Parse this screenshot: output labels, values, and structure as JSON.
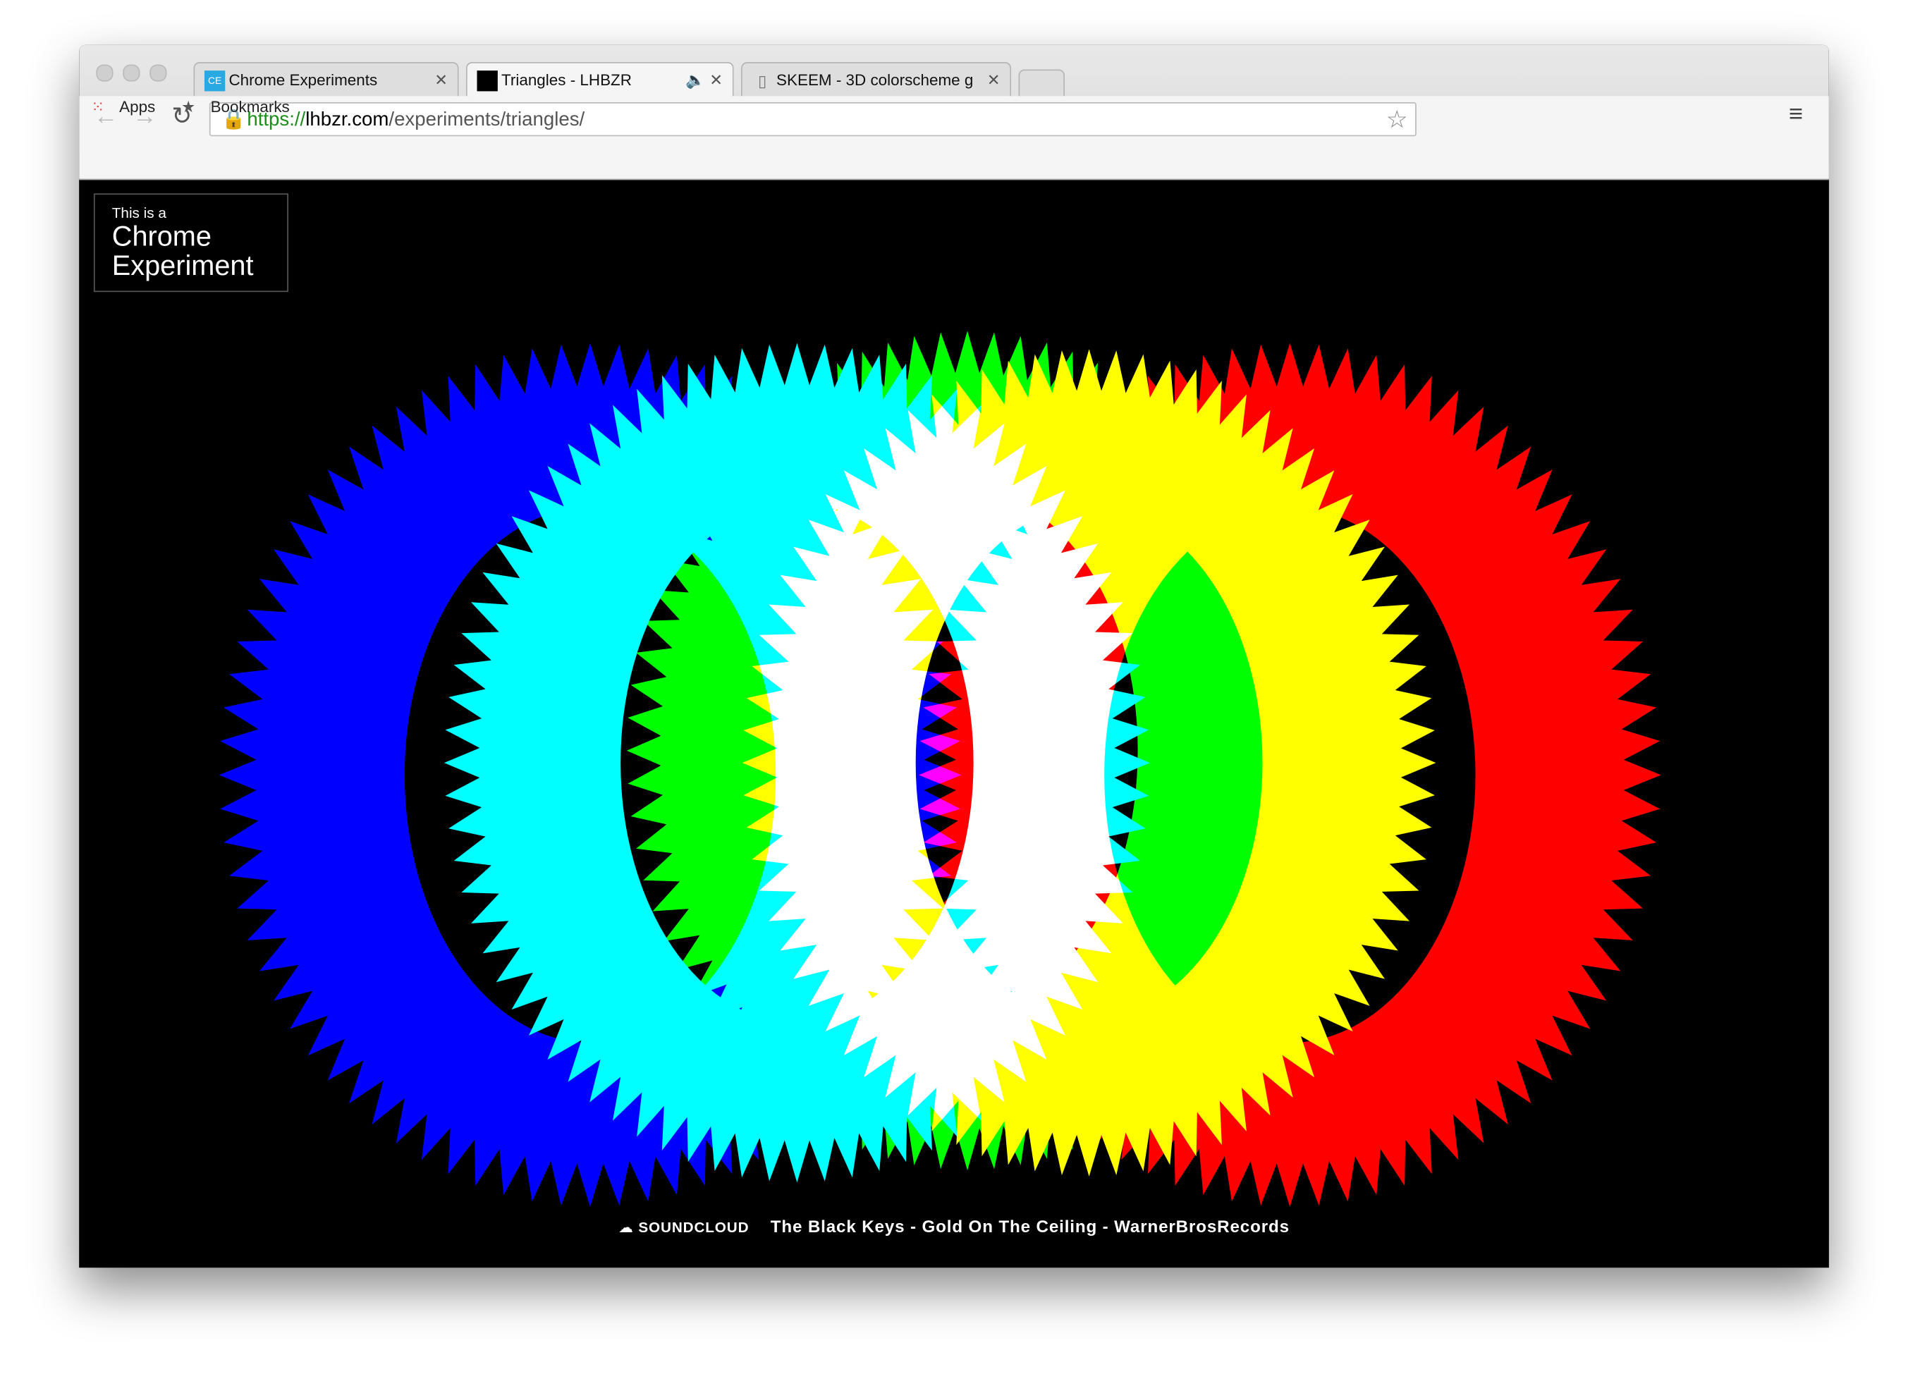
{
  "browser": {
    "tabs": [
      {
        "icon": "CE",
        "title": "Chrome Experiments"
      },
      {
        "title": "Triangles - LHBZR"
      },
      {
        "title": "SKEEM - 3D colorscheme g"
      }
    ],
    "url_scheme": "https://",
    "url_host": "lhbzr.com",
    "url_path": "/experiments/triangles/",
    "bookmarks": [
      "Apps",
      "Bookmarks"
    ]
  },
  "page": {
    "badge_small": "This is a",
    "badge_line1": "Chrome",
    "badge_line2": "Experiment",
    "soundcloud": "SOUNDCLOUD",
    "track": "The Black Keys - Gold On The Ceiling - WarnerBrosRecords"
  }
}
